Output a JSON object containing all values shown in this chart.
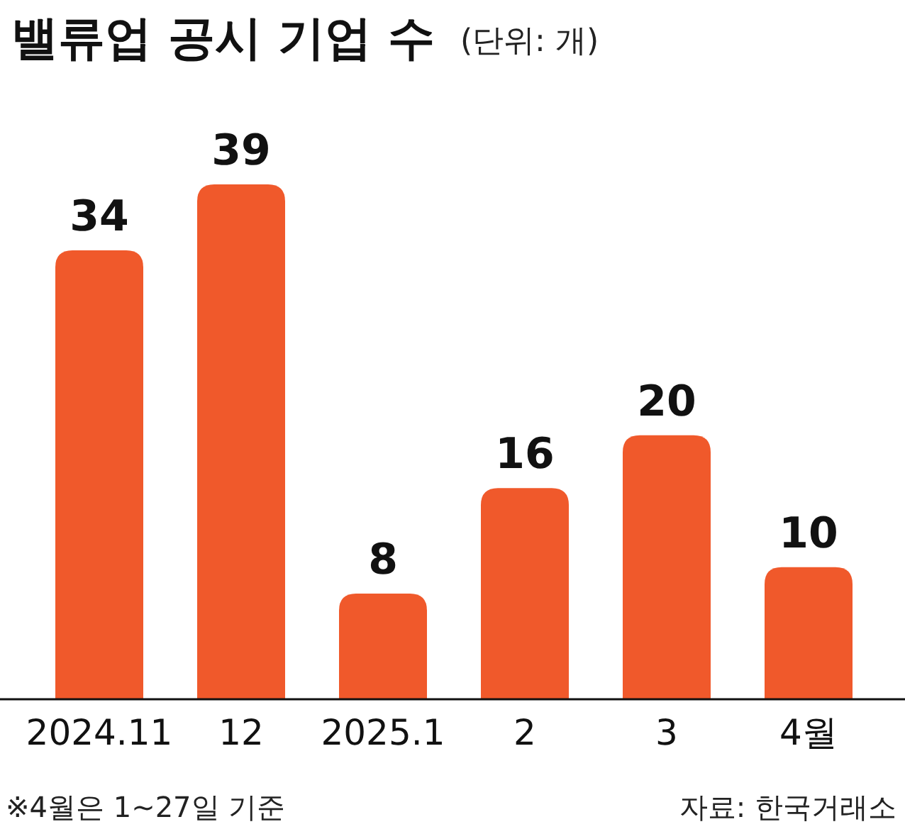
{
  "chart_data": {
    "type": "bar",
    "title": "밸류업 공시 기업 수",
    "subtitle": "(단위: 개)",
    "categories": [
      "2024.11",
      "12",
      "2025.1",
      "2",
      "3",
      "4월"
    ],
    "values": [
      34,
      39,
      8,
      16,
      20,
      10
    ],
    "color": "#f0592b",
    "data_labels": true,
    "annotations": [
      "※4월은 1~27일 기준",
      "자료: 한국거래소"
    ]
  }
}
